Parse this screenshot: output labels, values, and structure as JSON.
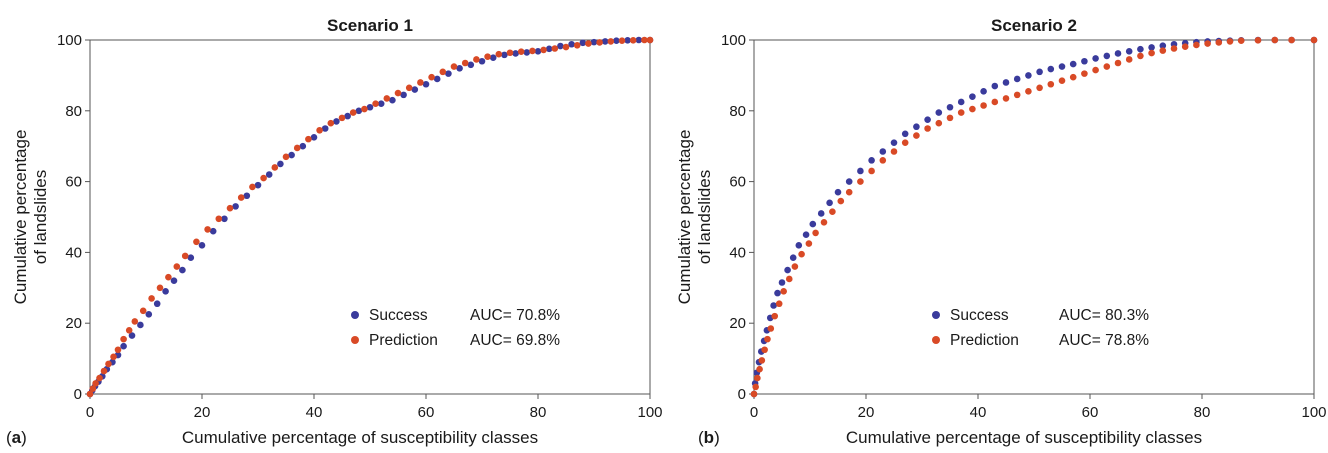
{
  "chart_data": [
    {
      "type": "scatter",
      "panel_label": "a",
      "title": "Scenario 1",
      "xlabel": "Cumulative percentage of susceptibility classes",
      "ylabel": [
        "Cumulative percentage",
        "of landslides"
      ],
      "xlim": [
        0,
        100
      ],
      "ylim": [
        0,
        100
      ],
      "xticks": [
        0,
        20,
        40,
        60,
        80,
        100
      ],
      "yticks": [
        0,
        20,
        40,
        60,
        80,
        100
      ],
      "grid": false,
      "legend_position": "bottom-right",
      "series": [
        {
          "name": "Success",
          "auc_label": "AUC= 70.8%",
          "color": "#3a3b9c",
          "points": [
            [
              0,
              0
            ],
            [
              0.4,
              1
            ],
            [
              0.9,
              2.2
            ],
            [
              1.5,
              3.5
            ],
            [
              2.2,
              5
            ],
            [
              3,
              7
            ],
            [
              4,
              9
            ],
            [
              5,
              11
            ],
            [
              6,
              13.5
            ],
            [
              7.5,
              16.5
            ],
            [
              9,
              19.5
            ],
            [
              10.5,
              22.5
            ],
            [
              12,
              25.5
            ],
            [
              13.5,
              29
            ],
            [
              15,
              32
            ],
            [
              16.5,
              35
            ],
            [
              18,
              38.5
            ],
            [
              20,
              42
            ],
            [
              22,
              46
            ],
            [
              24,
              49.5
            ],
            [
              26,
              53
            ],
            [
              28,
              56
            ],
            [
              30,
              59
            ],
            [
              32,
              62
            ],
            [
              34,
              65
            ],
            [
              36,
              67.5
            ],
            [
              38,
              70
            ],
            [
              40,
              72.5
            ],
            [
              42,
              75
            ],
            [
              44,
              77
            ],
            [
              46,
              78.5
            ],
            [
              48,
              80
            ],
            [
              50,
              81
            ],
            [
              52,
              82
            ],
            [
              54,
              83
            ],
            [
              56,
              84.5
            ],
            [
              58,
              86
            ],
            [
              60,
              87.5
            ],
            [
              62,
              89
            ],
            [
              64,
              90.5
            ],
            [
              66,
              92
            ],
            [
              68,
              93
            ],
            [
              70,
              94
            ],
            [
              72,
              95
            ],
            [
              74,
              95.8
            ],
            [
              76,
              96.2
            ],
            [
              78,
              96.5
            ],
            [
              80,
              96.8
            ],
            [
              82,
              97.5
            ],
            [
              84,
              98.3
            ],
            [
              86,
              98.8
            ],
            [
              88,
              99.2
            ],
            [
              90,
              99.4
            ],
            [
              92,
              99.6
            ],
            [
              94,
              99.8
            ],
            [
              96,
              99.9
            ],
            [
              98,
              100
            ],
            [
              100,
              100
            ]
          ]
        },
        {
          "name": "Prediction",
          "auc_label": "AUC= 69.8%",
          "color": "#d94a26",
          "points": [
            [
              0,
              0
            ],
            [
              0.5,
              1.5
            ],
            [
              1,
              3
            ],
            [
              1.7,
              4.5
            ],
            [
              2.5,
              6.5
            ],
            [
              3.3,
              8.5
            ],
            [
              4.2,
              10.5
            ],
            [
              5,
              12.5
            ],
            [
              6,
              15.5
            ],
            [
              7,
              18
            ],
            [
              8,
              20.5
            ],
            [
              9.5,
              23.5
            ],
            [
              11,
              27
            ],
            [
              12.5,
              30
            ],
            [
              14,
              33
            ],
            [
              15.5,
              36
            ],
            [
              17,
              39
            ],
            [
              19,
              43
            ],
            [
              21,
              46.5
            ],
            [
              23,
              49.5
            ],
            [
              25,
              52.5
            ],
            [
              27,
              55.5
            ],
            [
              29,
              58.5
            ],
            [
              31,
              61
            ],
            [
              33,
              64
            ],
            [
              35,
              67
            ],
            [
              37,
              69.5
            ],
            [
              39,
              72
            ],
            [
              41,
              74.5
            ],
            [
              43,
              76.5
            ],
            [
              45,
              78
            ],
            [
              47,
              79.5
            ],
            [
              49,
              80.5
            ],
            [
              51,
              82
            ],
            [
              53,
              83.5
            ],
            [
              55,
              85
            ],
            [
              57,
              86.5
            ],
            [
              59,
              88
            ],
            [
              61,
              89.5
            ],
            [
              63,
              91
            ],
            [
              65,
              92.5
            ],
            [
              67,
              93.5
            ],
            [
              69,
              94.5
            ],
            [
              71,
              95.3
            ],
            [
              73,
              96
            ],
            [
              75,
              96.4
            ],
            [
              77,
              96.7
            ],
            [
              79,
              96.9
            ],
            [
              81,
              97.2
            ],
            [
              83,
              97.6
            ],
            [
              85,
              98
            ],
            [
              87,
              98.5
            ],
            [
              89,
              99
            ],
            [
              91,
              99.3
            ],
            [
              93,
              99.6
            ],
            [
              95,
              99.8
            ],
            [
              97,
              99.9
            ],
            [
              99,
              100
            ],
            [
              100,
              100
            ]
          ]
        }
      ]
    },
    {
      "type": "scatter",
      "panel_label": "b",
      "title": "Scenario 2",
      "xlabel": "Cumulative percentage of susceptibility classes",
      "ylabel": [
        "Cumulative percentage",
        "of landslides"
      ],
      "xlim": [
        0,
        100
      ],
      "ylim": [
        0,
        100
      ],
      "xticks": [
        0,
        20,
        40,
        60,
        80,
        100
      ],
      "yticks": [
        0,
        20,
        40,
        60,
        80,
        100
      ],
      "grid": false,
      "legend_position": "bottom-right",
      "series": [
        {
          "name": "Success",
          "auc_label": "AUC= 80.3%",
          "color": "#3a3b9c",
          "points": [
            [
              0,
              0
            ],
            [
              0.2,
              3
            ],
            [
              0.5,
              6
            ],
            [
              0.9,
              9
            ],
            [
              1.3,
              12
            ],
            [
              1.8,
              15
            ],
            [
              2.3,
              18
            ],
            [
              2.9,
              21.5
            ],
            [
              3.5,
              25
            ],
            [
              4.2,
              28.5
            ],
            [
              5,
              31.5
            ],
            [
              6,
              35
            ],
            [
              7,
              38.5
            ],
            [
              8,
              42
            ],
            [
              9.3,
              45
            ],
            [
              10.5,
              48
            ],
            [
              12,
              51
            ],
            [
              13.5,
              54
            ],
            [
              15,
              57
            ],
            [
              17,
              60
            ],
            [
              19,
              63
            ],
            [
              21,
              66
            ],
            [
              23,
              68.5
            ],
            [
              25,
              71
            ],
            [
              27,
              73.5
            ],
            [
              29,
              75.5
            ],
            [
              31,
              77.5
            ],
            [
              33,
              79.5
            ],
            [
              35,
              81
            ],
            [
              37,
              82.5
            ],
            [
              39,
              84
            ],
            [
              41,
              85.5
            ],
            [
              43,
              87
            ],
            [
              45,
              88
            ],
            [
              47,
              89
            ],
            [
              49,
              90
            ],
            [
              51,
              91
            ],
            [
              53,
              91.8
            ],
            [
              55,
              92.5
            ],
            [
              57,
              93.2
            ],
            [
              59,
              94
            ],
            [
              61,
              94.8
            ],
            [
              63,
              95.5
            ],
            [
              65,
              96.2
            ],
            [
              67,
              96.8
            ],
            [
              69,
              97.4
            ],
            [
              71,
              97.9
            ],
            [
              73,
              98.4
            ],
            [
              75,
              98.8
            ],
            [
              77,
              99.1
            ],
            [
              79,
              99.4
            ],
            [
              81,
              99.6
            ],
            [
              83,
              99.7
            ],
            [
              85,
              99.8
            ],
            [
              87,
              99.9
            ],
            [
              90,
              100
            ],
            [
              93,
              100
            ],
            [
              96,
              100
            ],
            [
              100,
              100
            ]
          ]
        },
        {
          "name": "Prediction",
          "auc_label": "AUC= 78.8%",
          "color": "#d94a26",
          "points": [
            [
              0,
              0
            ],
            [
              0.3,
              2
            ],
            [
              0.6,
              4.5
            ],
            [
              1,
              7
            ],
            [
              1.4,
              9.5
            ],
            [
              1.9,
              12.5
            ],
            [
              2.4,
              15.5
            ],
            [
              3,
              18.5
            ],
            [
              3.7,
              22
            ],
            [
              4.5,
              25.5
            ],
            [
              5.3,
              29
            ],
            [
              6.3,
              32.5
            ],
            [
              7.3,
              36
            ],
            [
              8.5,
              39.5
            ],
            [
              9.8,
              42.5
            ],
            [
              11,
              45.5
            ],
            [
              12.5,
              48.5
            ],
            [
              14,
              51.5
            ],
            [
              15.5,
              54.5
            ],
            [
              17,
              57
            ],
            [
              19,
              60
            ],
            [
              21,
              63
            ],
            [
              23,
              66
            ],
            [
              25,
              68.5
            ],
            [
              27,
              71
            ],
            [
              29,
              73
            ],
            [
              31,
              75
            ],
            [
              33,
              76.5
            ],
            [
              35,
              78
            ],
            [
              37,
              79.5
            ],
            [
              39,
              80.5
            ],
            [
              41,
              81.5
            ],
            [
              43,
              82.5
            ],
            [
              45,
              83.5
            ],
            [
              47,
              84.5
            ],
            [
              49,
              85.5
            ],
            [
              51,
              86.5
            ],
            [
              53,
              87.5
            ],
            [
              55,
              88.5
            ],
            [
              57,
              89.5
            ],
            [
              59,
              90.5
            ],
            [
              61,
              91.5
            ],
            [
              63,
              92.5
            ],
            [
              65,
              93.5
            ],
            [
              67,
              94.5
            ],
            [
              69,
              95.5
            ],
            [
              71,
              96.3
            ],
            [
              73,
              97
            ],
            [
              75,
              97.6
            ],
            [
              77,
              98.1
            ],
            [
              79,
              98.6
            ],
            [
              81,
              99
            ],
            [
              83,
              99.3
            ],
            [
              85,
              99.6
            ],
            [
              87,
              99.8
            ],
            [
              90,
              99.9
            ],
            [
              93,
              100
            ],
            [
              96,
              100
            ],
            [
              100,
              100
            ]
          ]
        }
      ]
    }
  ]
}
